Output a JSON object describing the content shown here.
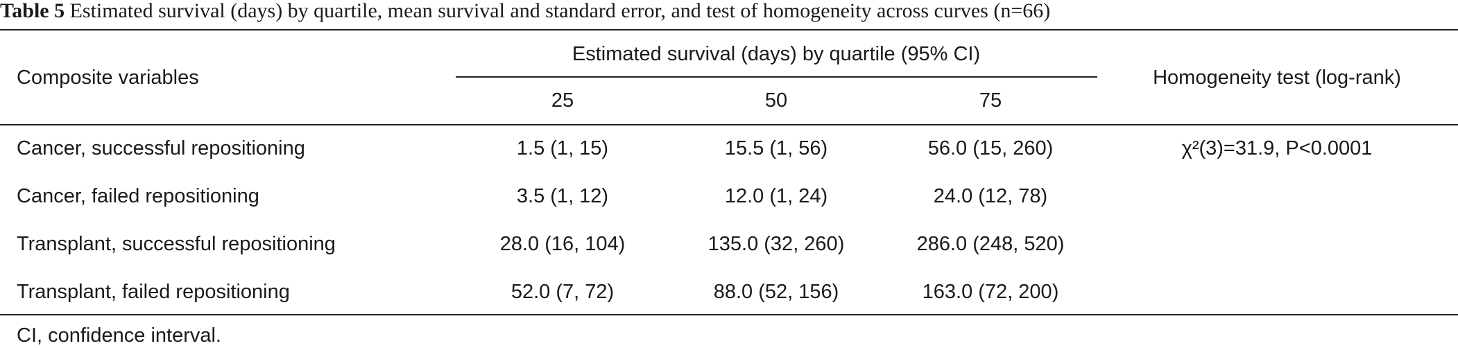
{
  "title": {
    "label": "Table 5",
    "text": "Estimated survival (days) by quartile, mean survival and standard error, and test of homogeneity across curves (n=66)"
  },
  "table": {
    "header": {
      "variable": "Composite variables",
      "group": "Estimated survival (days) by quartile (95% CI)",
      "quartiles": [
        "25",
        "50",
        "75"
      ],
      "test": "Homogeneity test (log-rank)"
    },
    "rows": [
      {
        "variable": "Cancer, successful repositioning",
        "cells": [
          "1.5 (1, 15)",
          "15.5 (1, 56)",
          "56.0 (15, 260)"
        ],
        "test": "χ²(3)=31.9, P<0.0001"
      },
      {
        "variable": "Cancer, failed repositioning",
        "cells": [
          "3.5 (1, 12)",
          "12.0 (1, 24)",
          "24.0 (12, 78)"
        ]
      },
      {
        "variable": "Transplant, successful repositioning",
        "cells": [
          "28.0 (16, 104)",
          "135.0 (32, 260)",
          "286.0 (248, 520)"
        ]
      },
      {
        "variable": "Transplant, failed repositioning",
        "cells": [
          "52.0 (7, 72)",
          "88.0 (52, 156)",
          "163.0 (72, 200)"
        ]
      }
    ]
  },
  "footnote": "CI, confidence interval."
}
